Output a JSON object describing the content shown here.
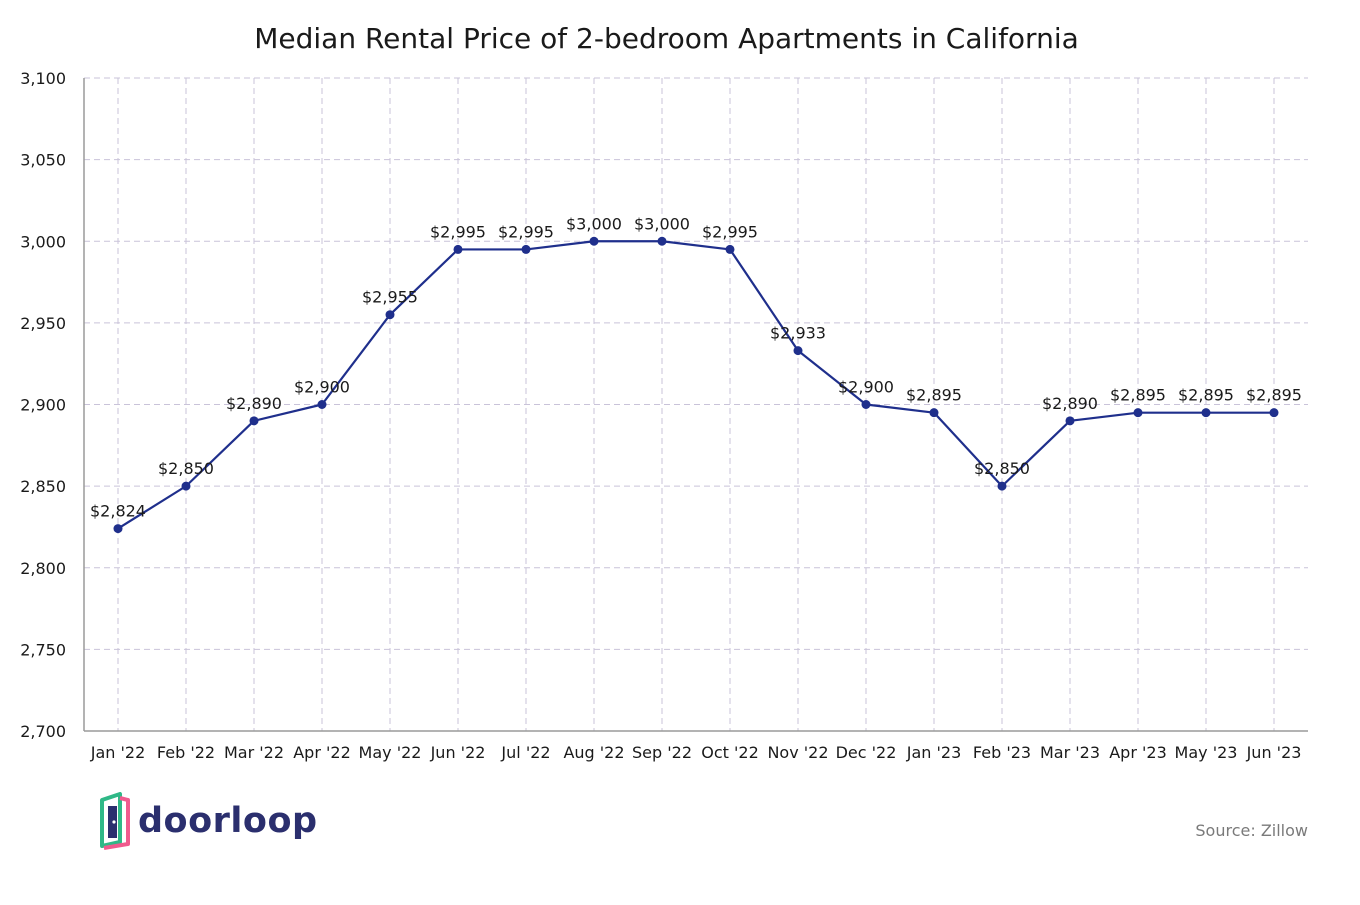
{
  "title": "Median Rental Price of 2-bedroom Apartments in California",
  "source": "Source: Zillow",
  "brand": {
    "name": "doorloop"
  },
  "colors": {
    "line": "#1f2f8c",
    "grid": "#c9c3d9",
    "axis": "#9a9a9a",
    "text": "#1a1a1a",
    "logo_green": "#2fb887",
    "logo_pink": "#f05a8e",
    "logo_navy": "#2b2f6e"
  },
  "chart_data": {
    "type": "line",
    "title": "Median Rental Price of 2-bedroom Apartments in California",
    "xlabel": "",
    "ylabel": "",
    "ylim": [
      2700,
      3100
    ],
    "yticks": [
      2700,
      2750,
      2800,
      2850,
      2900,
      2950,
      3000,
      3050,
      3100
    ],
    "ytick_labels": [
      "2,700",
      "2,750",
      "2,800",
      "2,850",
      "2,900",
      "2,950",
      "3,000",
      "3,050",
      "3,100"
    ],
    "grid": true,
    "categories": [
      "Jan '22",
      "Feb '22",
      "Mar '22",
      "Apr '22",
      "May '22",
      "Jun '22",
      "Jul '22",
      "Aug '22",
      "Sep '22",
      "Oct '22",
      "Nov '22",
      "Dec '22",
      "Jan '23",
      "Feb '23",
      "Mar '23",
      "Apr '23",
      "May '23",
      "Jun '23"
    ],
    "values": [
      2824,
      2850,
      2890,
      2900,
      2955,
      2995,
      2995,
      3000,
      3000,
      2995,
      2933,
      2900,
      2895,
      2850,
      2890,
      2895,
      2895,
      2895
    ],
    "data_labels": [
      "$2,824",
      "$2,850",
      "$2,890",
      "$2,900",
      "$2,955",
      "$2,995",
      "$2,995",
      "$3,000",
      "$3,000",
      "$2,995",
      "$2,933",
      "$2,900",
      "$2,895",
      "$2,850",
      "$2,890",
      "$2,895",
      "$2,895",
      "$2,895"
    ]
  }
}
